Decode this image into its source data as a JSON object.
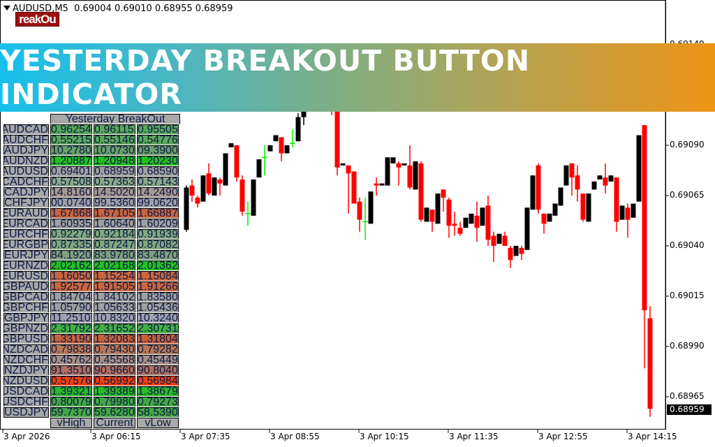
{
  "header": {
    "symbol": "AUDUSD,M5",
    "ohlc": "0.69004 0.69010 0.68955 0.68959"
  },
  "logo_text": "reakOu",
  "banner": {
    "title": "YESTERDAY BREAKOUT BUTTON INDICATOR"
  },
  "table": {
    "title": "Yesterday BreakOut",
    "footer": [
      "vHigh",
      "Current",
      "vLow"
    ],
    "rows": [
      {
        "pair": "AUDCAD",
        "v": [
          "0.96254",
          "0.96115",
          "0.95505"
        ],
        "color": "#5aa85a"
      },
      {
        "pair": "AUDCHF",
        "v": [
          "0.55215",
          "0.55146",
          "0.54776"
        ],
        "color": "#5aa85a"
      },
      {
        "pair": "AUDJPY",
        "v": [
          "10.2780",
          "10.0730",
          "09.3900"
        ],
        "color": "#6aa06a"
      },
      {
        "pair": "AUDNZD",
        "v": [
          "1.20887",
          "1.20948",
          "1.20230"
        ],
        "color": "#22c022"
      },
      {
        "pair": "AUDUSD",
        "v": [
          "0.69401",
          "0.68959",
          "0.68590"
        ],
        "color": "#a0a0a0"
      },
      {
        "pair": "CADCHF",
        "v": [
          "0.57508",
          "0.57363",
          "0.57143"
        ],
        "color": "#8aa88a"
      },
      {
        "pair": "CADJPY",
        "v": [
          "14.8160",
          "14.5020",
          "14.2490"
        ],
        "color": "#a89890"
      },
      {
        "pair": "CHFJPY",
        "v": [
          "00.0740",
          "99.5360",
          "99.0620"
        ],
        "color": "#a0a0a8"
      },
      {
        "pair": "EURAUD",
        "v": [
          "1.67868",
          "1.67105",
          "1.66887"
        ],
        "color": "#c86440"
      },
      {
        "pair": "EURCAD",
        "v": [
          "1.60935",
          "1.60640",
          "1.60209"
        ],
        "color": "#a0a0a0"
      },
      {
        "pair": "EURCHF",
        "v": [
          "0.92279",
          "0.92184",
          "0.91939"
        ],
        "color": "#80a880"
      },
      {
        "pair": "EURGBP",
        "v": [
          "0.87335",
          "0.87247",
          "0.87082"
        ],
        "color": "#80a880"
      },
      {
        "pair": "EURJPY",
        "v": [
          "84.1920",
          "83.9780",
          "83.4870"
        ],
        "color": "#80a080"
      },
      {
        "pair": "EURNZD",
        "v": [
          "2.02162",
          "2.02168",
          "2.01362"
        ],
        "color": "#22c022"
      },
      {
        "pair": "EURUSD",
        "v": [
          "1.16050",
          "1.15254",
          "1.15084"
        ],
        "color": "#cc6640"
      },
      {
        "pair": "GBPAUD",
        "v": [
          "1.92577",
          "1.91505",
          "1.91266"
        ],
        "color": "#cc6640"
      },
      {
        "pair": "GBPCAD",
        "v": [
          "1.84704",
          "1.84102",
          "1.83580"
        ],
        "color": "#a0a0a0"
      },
      {
        "pair": "GBPCHF",
        "v": [
          "1.05790",
          "1.05633",
          "1.05436"
        ],
        "color": "#a0a0a0"
      },
      {
        "pair": "GBPJPY",
        "v": [
          "11.2510",
          "10.8320",
          "10.3240"
        ],
        "color": "#a0a0b0"
      },
      {
        "pair": "GBPNZD",
        "v": [
          "2.31792",
          "2.31652",
          "2.30731"
        ],
        "color": "#44b044"
      },
      {
        "pair": "GBPUSD",
        "v": [
          "1.33190",
          "1.32083",
          "1.31804"
        ],
        "color": "#c8623e"
      },
      {
        "pair": "NZDCAD",
        "v": [
          "0.79838",
          "0.79430",
          "0.79282"
        ],
        "color": "#b87858"
      },
      {
        "pair": "NZDCHF",
        "v": [
          "0.45762",
          "0.45568",
          "0.45449"
        ],
        "color": "#a89088"
      },
      {
        "pair": "NZDJPY",
        "v": [
          "91.35100",
          "90.96600",
          "90.80400"
        ],
        "color": "#b07060"
      },
      {
        "pair": "NZDUSD",
        "v": [
          "0.57576",
          "0.56992",
          "0.56984"
        ],
        "color": "#f04010"
      },
      {
        "pair": "USDCAD",
        "v": [
          "1.39321",
          "1.39389",
          "1.38679"
        ],
        "color": "#28b828"
      },
      {
        "pair": "USDCHF",
        "v": [
          "0.80079",
          "0.79980",
          "0.79273"
        ],
        "color": "#44a844"
      },
      {
        "pair": "USDJPY",
        "v": [
          "59.7370",
          "59.6280",
          "58.5390"
        ],
        "color": "#44a844"
      }
    ]
  },
  "price_axis": {
    "labels": [
      "0.69140",
      "0.69090",
      "0.69065",
      "0.69040",
      "0.69015",
      "0.68990",
      "0.68965"
    ],
    "current": "0.68959"
  },
  "time_axis": {
    "labels": [
      "3 Apr 2026",
      "3 Apr 06:15",
      "3 Apr 07:35",
      "3 Apr 08:55",
      "3 Apr 10:15",
      "3 Apr 11:35",
      "3 Apr 12:55",
      "3 Apr 14:15"
    ]
  },
  "colors": {
    "bull": "#000000",
    "bear": "#ff0000",
    "doji": "#00ee00"
  },
  "chart_data": {
    "type": "candlestick",
    "timeframe": "M5",
    "candles_ohlc": [
      [
        0.69048,
        0.6907,
        0.69047,
        0.69069
      ],
      [
        0.6907,
        0.69073,
        0.69062,
        0.69065
      ],
      [
        0.69064,
        0.69065,
        0.69059,
        0.69061
      ],
      [
        0.69062,
        0.69075,
        0.69062,
        0.69075
      ],
      [
        0.69076,
        0.69081,
        0.69065,
        0.69066
      ],
      [
        0.69065,
        0.69074,
        0.69065,
        0.69074
      ],
      [
        0.69073,
        0.69074,
        0.69065,
        0.69071
      ],
      [
        0.6907,
        0.69086,
        0.6907,
        0.69086
      ],
      [
        0.69089,
        0.69091,
        0.69089,
        0.69091
      ],
      [
        0.6909,
        0.6909,
        0.69072,
        0.69074
      ],
      [
        0.69073,
        0.69075,
        0.69055,
        0.69057
      ],
      [
        0.69056,
        0.69062,
        0.6905,
        0.69056
      ],
      [
        0.69055,
        0.69073,
        0.69055,
        0.69073
      ],
      [
        0.69074,
        0.69083,
        0.69074,
        0.69083
      ],
      [
        0.69084,
        0.6909,
        0.69075,
        0.69084
      ],
      [
        0.69087,
        0.6909,
        0.69087,
        0.6909
      ],
      [
        0.69092,
        0.69095,
        0.69092,
        0.69095
      ],
      [
        0.69094,
        0.69094,
        0.69082,
        0.69086
      ],
      [
        0.69086,
        0.6909,
        0.69086,
        0.6909
      ],
      [
        0.69091,
        0.69098,
        0.69089,
        0.69091
      ],
      [
        0.69092,
        0.69106,
        0.69092,
        0.69104
      ],
      [
        0.69104,
        0.69115,
        0.691,
        0.69112
      ],
      [
        0.69112,
        0.69125,
        0.69108,
        0.6912
      ],
      [
        0.6912,
        0.6913,
        0.69114,
        0.69118
      ],
      [
        0.69118,
        0.6914,
        0.69116,
        0.69132
      ],
      [
        0.69132,
        0.69135,
        0.69115,
        0.69118
      ],
      [
        0.69118,
        0.69122,
        0.69105,
        0.69108
      ],
      [
        0.69108,
        0.6911,
        0.69075,
        0.69079
      ],
      [
        0.6908,
        0.69081,
        0.6908,
        0.69081
      ],
      [
        0.6908,
        0.6908,
        0.69056,
        0.69076
      ],
      [
        0.69077,
        0.69077,
        0.69061,
        0.69061
      ],
      [
        0.69062,
        0.69064,
        0.69047,
        0.69053
      ],
      [
        0.69052,
        0.69064,
        0.69043,
        0.69052
      ],
      [
        0.69051,
        0.69067,
        0.69051,
        0.69067
      ],
      [
        0.69071,
        0.69074,
        0.69065,
        0.6907
      ],
      [
        0.6907,
        0.69071,
        0.6907,
        0.69071
      ],
      [
        0.6907,
        0.69084,
        0.6907,
        0.69084
      ],
      [
        0.69081,
        0.69084,
        0.69081,
        0.69084
      ],
      [
        0.69081,
        0.69082,
        0.6907,
        0.69079
      ],
      [
        0.6908,
        0.69081,
        0.6908,
        0.69081
      ],
      [
        0.6908,
        0.6909,
        0.69068,
        0.69069
      ],
      [
        0.69068,
        0.69082,
        0.69068,
        0.69082
      ],
      [
        0.69081,
        0.69082,
        0.69052,
        0.69053
      ],
      [
        0.69052,
        0.69059,
        0.69052,
        0.69059
      ],
      [
        0.69058,
        0.69058,
        0.69047,
        0.69052
      ],
      [
        0.69051,
        0.69066,
        0.69051,
        0.69066
      ],
      [
        0.69068,
        0.69068,
        0.69057,
        0.69064
      ],
      [
        0.69063,
        0.69064,
        0.69044,
        0.6905
      ],
      [
        0.69051,
        0.69057,
        0.69045,
        0.6905
      ],
      [
        0.69049,
        0.69052,
        0.69045,
        0.69046
      ],
      [
        0.69049,
        0.69054,
        0.69049,
        0.69054
      ],
      [
        0.69051,
        0.69056,
        0.69051,
        0.69056
      ],
      [
        0.69055,
        0.69062,
        0.69042,
        0.69049
      ],
      [
        0.6905,
        0.69059,
        0.6905,
        0.69059
      ],
      [
        0.6906,
        0.69065,
        0.6904,
        0.69043
      ],
      [
        0.69045,
        0.69047,
        0.69032,
        0.6904
      ],
      [
        0.69041,
        0.69046,
        0.69041,
        0.69046
      ],
      [
        0.69045,
        0.69047,
        0.6904,
        0.6904
      ],
      [
        0.69039,
        0.6904,
        0.69029,
        0.69033
      ],
      [
        0.69035,
        0.6904,
        0.69035,
        0.6904
      ],
      [
        0.69039,
        0.6904,
        0.69033,
        0.69036
      ],
      [
        0.69038,
        0.69059,
        0.69038,
        0.69059
      ],
      [
        0.69058,
        0.69075,
        0.69058,
        0.69075
      ],
      [
        0.6908,
        0.69081,
        0.69056,
        0.69058
      ],
      [
        0.69056,
        0.69056,
        0.69046,
        0.69051
      ],
      [
        0.69052,
        0.69056,
        0.69052,
        0.69056
      ],
      [
        0.69055,
        0.69061,
        0.69055,
        0.69061
      ],
      [
        0.6906,
        0.69069,
        0.6906,
        0.69069
      ],
      [
        0.6907,
        0.6908,
        0.6907,
        0.6908
      ],
      [
        0.69081,
        0.69081,
        0.69065,
        0.69074
      ],
      [
        0.69075,
        0.6908,
        0.69062,
        0.69068
      ],
      [
        0.69066,
        0.69066,
        0.69052,
        0.69053
      ],
      [
        0.69052,
        0.69066,
        0.69052,
        0.69066
      ],
      [
        0.69068,
        0.69072,
        0.69068,
        0.69072
      ],
      [
        0.69073,
        0.69075,
        0.69073,
        0.69075
      ],
      [
        0.69074,
        0.69081,
        0.69066,
        0.6907
      ],
      [
        0.69072,
        0.69075,
        0.69072,
        0.69075
      ],
      [
        0.69074,
        0.69074,
        0.69047,
        0.69052
      ],
      [
        0.69053,
        0.6906,
        0.69053,
        0.6906
      ],
      [
        0.69059,
        0.69061,
        0.69044,
        0.69053
      ],
      [
        0.69054,
        0.69061,
        0.69054,
        0.69061
      ],
      [
        0.69062,
        0.69095,
        0.69062,
        0.69095
      ],
      [
        0.691,
        0.691,
        0.68979,
        0.69008
      ],
      [
        0.69004,
        0.6901,
        0.68955,
        0.68959
      ]
    ],
    "yticks": [
      0.6914,
      0.6909,
      0.69065,
      0.6904,
      0.69015,
      0.6899,
      0.68965
    ],
    "current_price": 0.68959,
    "grid": false
  }
}
